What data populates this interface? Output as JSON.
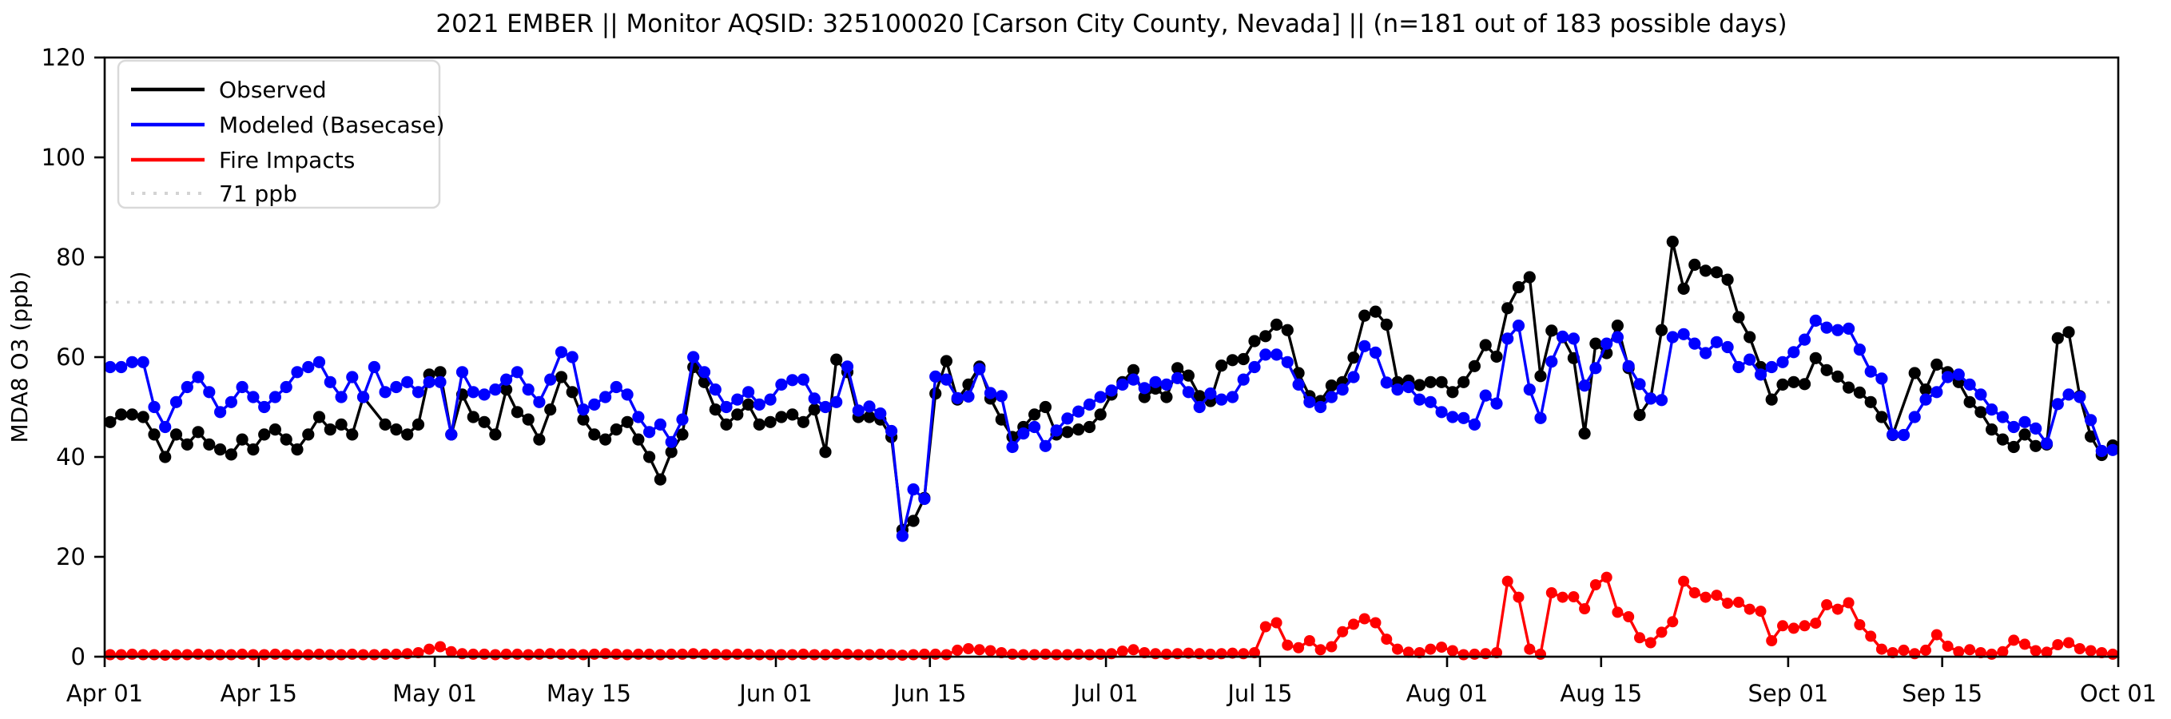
{
  "figure": {
    "title": "2021 EMBER || Monitor AQSID: 325100020 [Carson City County, Nevada] || (n=181 out of 183 possible days)"
  },
  "chart_data": {
    "type": "line",
    "title": "2021 EMBER || Monitor AQSID: 325100020 [Carson City County, Nevada] || (n=181 out of 183 possible days)",
    "xlabel": "",
    "ylabel": "MDA8 O3 (ppb)",
    "ylim": [
      0,
      120
    ],
    "yticks": [
      0,
      20,
      40,
      60,
      80,
      100,
      120
    ],
    "x_range_days": 183,
    "x_start": "Apr 01",
    "x_end": "Oct 01",
    "grid": "off",
    "x_tick_labels": [
      {
        "label": "Apr 01",
        "day": 0
      },
      {
        "label": "Apr 15",
        "day": 14
      },
      {
        "label": "May 01",
        "day": 30
      },
      {
        "label": "May 15",
        "day": 44
      },
      {
        "label": "Jun 01",
        "day": 61
      },
      {
        "label": "Jun 15",
        "day": 75
      },
      {
        "label": "Jul 01",
        "day": 91
      },
      {
        "label": "Jul 15",
        "day": 105
      },
      {
        "label": "Aug 01",
        "day": 122
      },
      {
        "label": "Aug 15",
        "day": 136
      },
      {
        "label": "Sep 01",
        "day": 153
      },
      {
        "label": "Sep 15",
        "day": 167
      },
      {
        "label": "Oct 01",
        "day": 183
      }
    ],
    "threshold": {
      "value": 71,
      "label": "71 ppb",
      "color": "#d3d3d3",
      "style": "dotted"
    },
    "legend": {
      "position": "upper left",
      "entries": [
        {
          "label": "Observed",
          "color": "#000000",
          "style": "solid"
        },
        {
          "label": "Modeled (Basecase)",
          "color": "#0000ff",
          "style": "solid"
        },
        {
          "label": "Fire Impacts",
          "color": "#ff0000",
          "style": "solid"
        },
        {
          "label": "71 ppb",
          "color": "#d3d3d3",
          "style": "dotted"
        }
      ]
    },
    "series": [
      {
        "name": "Observed",
        "color": "#000000",
        "marker": "circle",
        "values": [
          47,
          48.5,
          48.5,
          48,
          44.5,
          40,
          44.5,
          42.5,
          45,
          42.5,
          41.5,
          40.5,
          43.5,
          41.5,
          44.5,
          45.5,
          43.5,
          41.5,
          44.5,
          48,
          45.5,
          46.5,
          44.5,
          52,
          null,
          46.5,
          45.5,
          44.5,
          46.5,
          56.5,
          57,
          44.5,
          52.5,
          48,
          47,
          44.5,
          53.5,
          49,
          47.5,
          43.5,
          49.5,
          56,
          53,
          47.5,
          44.5,
          43.5,
          45.5,
          47,
          43.5,
          40,
          35.5,
          41,
          44.5,
          58,
          55,
          49.5,
          46.5,
          48.5,
          50.5,
          46.5,
          47,
          48,
          48.5,
          47,
          49.5,
          41,
          59.5,
          57,
          48,
          48,
          47.5,
          44,
          25.4,
          27.2,
          31.8,
          52.7,
          59.2,
          51.5,
          54.5,
          58.1,
          51.7,
          47.5,
          44,
          46,
          48.5,
          50,
          44.5,
          45,
          45.5,
          46,
          48.5,
          52.5,
          55,
          57.4,
          52,
          53.7,
          52,
          57.8,
          56.3,
          52.2,
          51.2,
          58.3,
          59.4,
          59.6,
          63.2,
          64.2,
          66.5,
          65.4,
          56.8,
          52.2,
          51.2,
          54.3,
          55,
          59.9,
          68.3,
          69.1,
          66.5,
          55,
          55.3,
          54.4,
          55,
          55,
          53,
          55,
          58.2,
          62.4,
          60.1,
          69.8,
          74,
          76,
          56.2,
          65.3,
          64,
          59.8,
          44.7,
          62.7,
          60.8,
          66.3,
          57.8,
          48.4,
          51.7,
          65.4,
          83.1,
          73.7,
          78.5,
          77.3,
          77,
          75.5,
          68,
          64,
          58,
          51.5,
          54.5,
          55,
          54.6,
          59.8,
          57.4,
          56.1,
          53.9,
          52.9,
          51,
          48,
          44.4,
          null,
          56.8,
          53.5,
          58.5,
          57,
          55,
          51,
          49,
          45.5,
          43.5,
          42,
          44.5,
          42.2,
          42.5,
          63.8,
          65,
          52.2,
          44.1,
          40.4,
          42.3
        ]
      },
      {
        "name": "Modeled (Basecase)",
        "color": "#0000ff",
        "marker": "circle",
        "values": [
          58,
          58,
          59,
          59,
          50,
          46,
          51,
          54,
          56,
          53,
          49,
          51,
          54,
          52,
          50,
          52,
          54,
          57,
          58,
          59,
          55,
          52,
          56,
          52,
          58,
          53,
          54,
          55,
          53,
          55,
          55,
          44.5,
          57,
          53,
          52.5,
          53.5,
          55.5,
          57,
          53.5,
          51,
          55.5,
          61,
          60,
          49.5,
          50.5,
          52,
          54,
          52.5,
          48,
          45,
          46.5,
          43,
          47.5,
          60,
          57,
          53.5,
          50,
          51.5,
          53,
          50.5,
          51.5,
          54.5,
          55.4,
          55.5,
          51.7,
          50,
          51,
          58.1,
          49.3,
          50.1,
          48.7,
          45.2,
          24.2,
          33.5,
          31.6,
          56.1,
          55.5,
          51.8,
          52.1,
          57.6,
          52.8,
          52.2,
          42,
          44.7,
          46,
          42.2,
          45.3,
          47.7,
          49.1,
          50.5,
          52,
          53.3,
          54.5,
          55.5,
          53.8,
          55,
          54.5,
          55.8,
          53,
          50,
          52.7,
          51.5,
          52,
          55.5,
          58,
          60.5,
          60.5,
          59,
          54.5,
          51,
          50,
          52,
          53.5,
          56,
          62.2,
          60.9,
          54.9,
          53.5,
          54,
          51.5,
          51,
          49,
          48,
          47.8,
          46.5,
          52.3,
          50.7,
          63.7,
          66.3,
          53.5,
          47.8,
          59.1,
          64.1,
          63.7,
          54.3,
          57.8,
          62.7,
          64,
          58.2,
          54.6,
          51.7,
          51.4,
          64,
          64.6,
          62.7,
          60.8,
          63,
          62,
          58,
          59.5,
          56.5,
          58,
          59,
          61,
          63.5,
          67.3,
          65.9,
          65.4,
          65.7,
          61.5,
          57.1,
          55.7,
          44.5,
          44.4,
          48,
          51.5,
          53,
          56,
          56.5,
          54.5,
          52.5,
          49.5,
          48,
          46,
          47,
          45.7,
          42.7,
          50.6,
          52.5,
          52,
          47.4,
          41.2,
          41.4
        ]
      },
      {
        "name": "Fire Impacts",
        "color": "#ff0000",
        "marker": "circle",
        "values": [
          0.4,
          0.4,
          0.5,
          0.4,
          0.4,
          0.3,
          0.4,
          0.4,
          0.5,
          0.4,
          0.4,
          0.4,
          0.5,
          0.4,
          0.4,
          0.5,
          0.4,
          0.4,
          0.4,
          0.5,
          0.4,
          0.4,
          0.5,
          0.4,
          0.4,
          0.5,
          0.5,
          0.6,
          0.8,
          1.5,
          2,
          1,
          0.6,
          0.5,
          0.5,
          0.4,
          0.5,
          0.5,
          0.4,
          0.5,
          0.6,
          0.5,
          0.5,
          0.4,
          0.5,
          0.6,
          0.5,
          0.4,
          0.5,
          0.5,
          0.4,
          0.5,
          0.5,
          0.6,
          0.5,
          0.5,
          0.4,
          0.5,
          0.5,
          0.4,
          0.4,
          0.4,
          0.4,
          0.5,
          0.4,
          0.4,
          0.5,
          0.5,
          0.4,
          0.4,
          0.5,
          0.4,
          0.3,
          0.4,
          0.5,
          0.5,
          0.4,
          1.3,
          1.6,
          1.4,
          1.2,
          0.8,
          0.5,
          0.4,
          0.4,
          0.5,
          0.4,
          0.4,
          0.5,
          0.4,
          0.5,
          0.6,
          1.1,
          1.4,
          0.8,
          0.6,
          0.5,
          0.6,
          0.7,
          0.6,
          0.5,
          0.6,
          0.7,
          0.6,
          0.8,
          6,
          6.8,
          2.3,
          1.8,
          3.2,
          1.4,
          2,
          5,
          6.5,
          7.6,
          6.8,
          3.5,
          1.5,
          0.9,
          0.8,
          1.5,
          1.9,
          1.2,
          0.4,
          0.5,
          0.6,
          0.8,
          15.1,
          11.9,
          1.5,
          0.5,
          12.8,
          11.9,
          12,
          9.6,
          14.4,
          15.9,
          8.9,
          8,
          3.8,
          2.8,
          4.9,
          7,
          15.1,
          12.8,
          11.9,
          12.3,
          10.7,
          10.9,
          9.5,
          9.1,
          3.2,
          6.2,
          5.7,
          6.2,
          6.7,
          10.4,
          9.5,
          10.8,
          6.4,
          4.1,
          1.5,
          0.8,
          1.3,
          0.6,
          1.3,
          4.4,
          2.1,
          1,
          1.4,
          0.8,
          0.5,
          1,
          3.3,
          2.5,
          1.2,
          0.9,
          2.4,
          2.8,
          1.6,
          1.2,
          0.8,
          0.5
        ]
      }
    ]
  }
}
